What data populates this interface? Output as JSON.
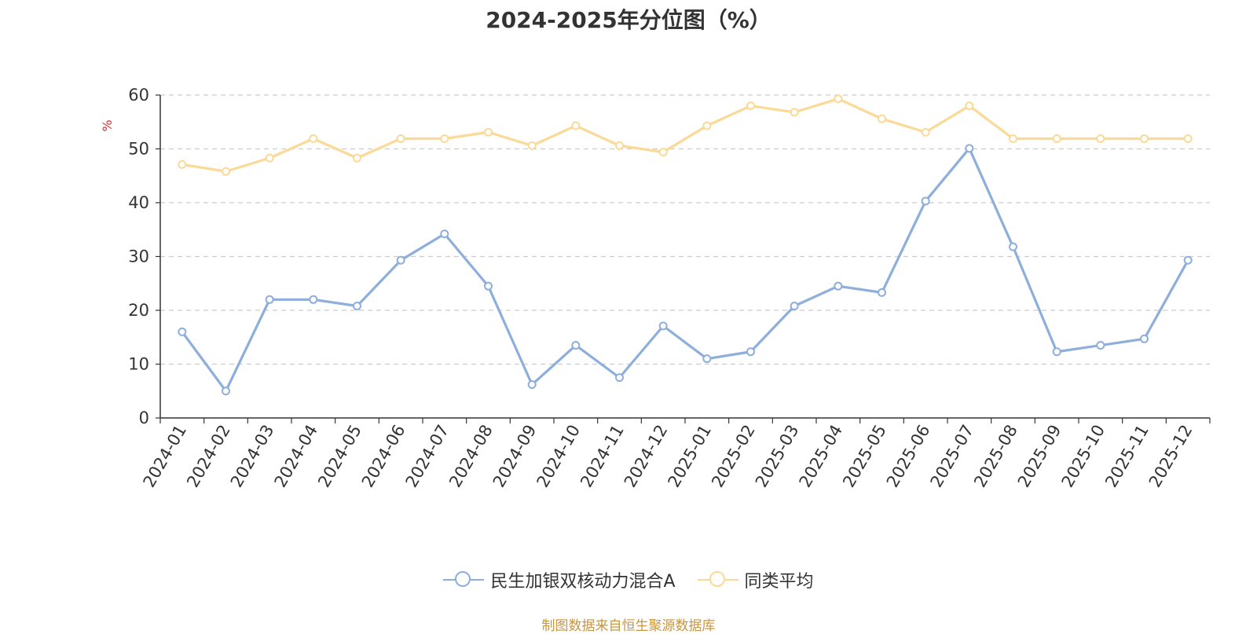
{
  "chart_data": {
    "type": "line",
    "title": "2024-2025年分位图（%）",
    "ylabel": "%",
    "xlabel": "",
    "ylim": [
      0,
      60
    ],
    "yticks": [
      0,
      10,
      20,
      30,
      40,
      50,
      60
    ],
    "grid": true,
    "legend_position": "bottom-center",
    "categories": [
      "2024-01",
      "2024-02",
      "2024-03",
      "2024-04",
      "2024-05",
      "2024-06",
      "2024-07",
      "2024-08",
      "2024-09",
      "2024-10",
      "2024-11",
      "2024-12",
      "2025-01",
      "2025-02",
      "2025-03",
      "2025-04",
      "2025-05",
      "2025-06",
      "2025-07",
      "2025-08",
      "2025-09",
      "2025-10",
      "2025-11",
      "2025-12"
    ],
    "series": [
      {
        "name": "民生加银双核动力混合A",
        "color": "#8eaedb",
        "values": [
          16.0,
          5.0,
          22.0,
          22.0,
          20.8,
          29.3,
          34.2,
          24.5,
          6.2,
          13.5,
          7.5,
          17.1,
          11.0,
          12.3,
          20.8,
          24.5,
          23.3,
          40.3,
          50.1,
          31.8,
          12.3,
          13.5,
          14.7,
          29.3
        ]
      },
      {
        "name": "同类平均",
        "color": "#fbd996",
        "values": [
          47.1,
          45.8,
          48.3,
          51.9,
          48.3,
          51.9,
          51.9,
          53.1,
          50.6,
          54.3,
          50.6,
          49.4,
          54.3,
          58.0,
          56.8,
          59.3,
          55.6,
          53.1,
          58.0,
          51.9,
          51.9,
          51.9,
          51.9,
          51.9
        ]
      }
    ]
  },
  "source_text": "制图数据来自恒生聚源数据库"
}
